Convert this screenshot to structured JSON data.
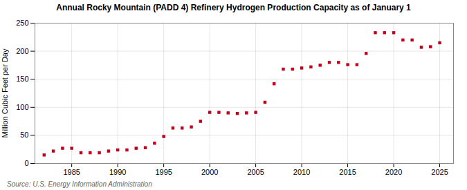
{
  "chart_data": {
    "type": "scatter",
    "title": "Annual Rocky Mountain (PADD 4) Refinery Hydrogen Production Capacity as of January 1",
    "ylabel": "Million Cubic Feet per Day",
    "source": "Source: U.S. Energy Information Administration",
    "x": [
      1982,
      1983,
      1984,
      1985,
      1986,
      1987,
      1988,
      1989,
      1990,
      1991,
      1992,
      1993,
      1994,
      1995,
      1996,
      1997,
      1998,
      1999,
      2000,
      2001,
      2002,
      2003,
      2004,
      2005,
      2006,
      2007,
      2008,
      2009,
      2010,
      2011,
      2012,
      2013,
      2014,
      2015,
      2016,
      2017,
      2018,
      2019,
      2020,
      2021,
      2022,
      2023,
      2024,
      2025
    ],
    "values": [
      15,
      22,
      27,
      27,
      19,
      19,
      19,
      22,
      24,
      24,
      27,
      28,
      36,
      48,
      63,
      63,
      65,
      75,
      91,
      91,
      90,
      89,
      90,
      91,
      109,
      142,
      168,
      168,
      170,
      172,
      175,
      180,
      180,
      176,
      176,
      196,
      233,
      233,
      233,
      220,
      220,
      207,
      208,
      215
    ],
    "color": "#c0001a",
    "marker": "square",
    "xlim": [
      1981,
      2026.5
    ],
    "ylim": [
      0,
      250
    ],
    "xticks": [
      1985,
      1990,
      1995,
      2000,
      2005,
      2010,
      2015,
      2020,
      2025
    ],
    "yticks": [
      0,
      50,
      100,
      150,
      200,
      250
    ],
    "grid": true
  }
}
